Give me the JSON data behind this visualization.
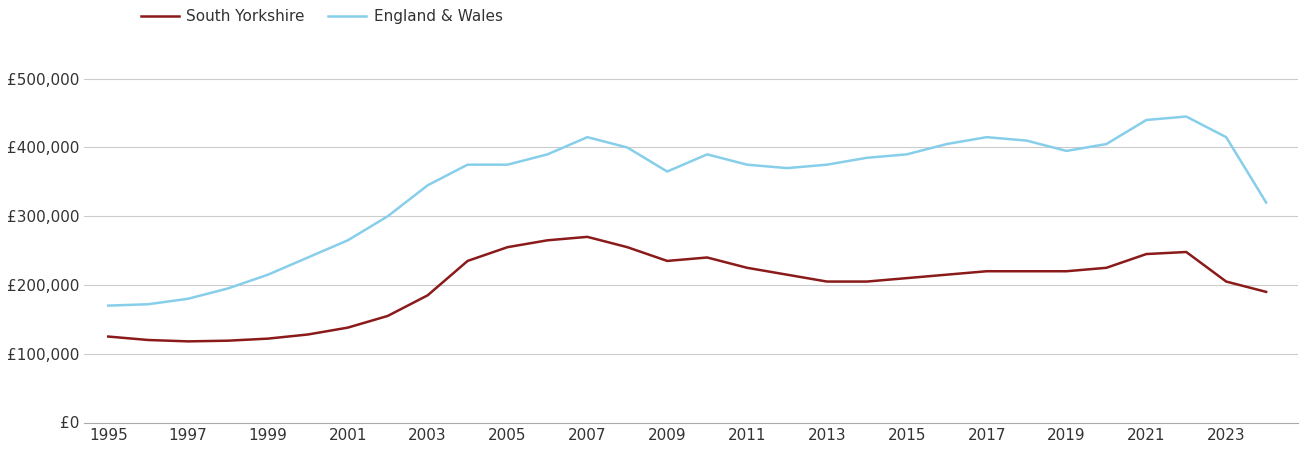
{
  "south_yorkshire": {
    "years": [
      1995,
      1996,
      1997,
      1998,
      1999,
      2000,
      2001,
      2002,
      2003,
      2004,
      2005,
      2006,
      2007,
      2008,
      2009,
      2010,
      2011,
      2012,
      2013,
      2014,
      2015,
      2016,
      2017,
      2018,
      2019,
      2020,
      2021,
      2022,
      2023,
      2024
    ],
    "values": [
      125000,
      120000,
      118000,
      119000,
      122000,
      128000,
      138000,
      155000,
      185000,
      235000,
      255000,
      265000,
      270000,
      255000,
      235000,
      240000,
      225000,
      215000,
      205000,
      205000,
      210000,
      215000,
      220000,
      220000,
      220000,
      225000,
      245000,
      248000,
      205000,
      190000
    ]
  },
  "england_wales": {
    "years": [
      1995,
      1996,
      1997,
      1998,
      1999,
      2000,
      2001,
      2002,
      2003,
      2004,
      2005,
      2006,
      2007,
      2008,
      2009,
      2010,
      2011,
      2012,
      2013,
      2014,
      2015,
      2016,
      2017,
      2018,
      2019,
      2020,
      2021,
      2022,
      2023,
      2024
    ],
    "values": [
      170000,
      172000,
      180000,
      195000,
      215000,
      240000,
      265000,
      300000,
      345000,
      375000,
      375000,
      390000,
      415000,
      400000,
      365000,
      390000,
      375000,
      370000,
      375000,
      385000,
      390000,
      405000,
      415000,
      410000,
      395000,
      405000,
      440000,
      445000,
      415000,
      320000
    ]
  },
  "sy_color": "#8B1A1A",
  "ew_color": "#87CEEB",
  "sy_label": "South Yorkshire",
  "ew_label": "England & Wales",
  "ylim": [
    0,
    550000
  ],
  "yticks": [
    0,
    100000,
    200000,
    300000,
    400000,
    500000
  ],
  "ytick_labels": [
    "£0",
    "£100,000",
    "£200,000",
    "£300,000",
    "£400,000",
    "£500,000"
  ],
  "line_width": 1.8,
  "background_color": "#ffffff",
  "grid_color": "#cccccc",
  "xlim": [
    1994.4,
    2024.8
  ]
}
